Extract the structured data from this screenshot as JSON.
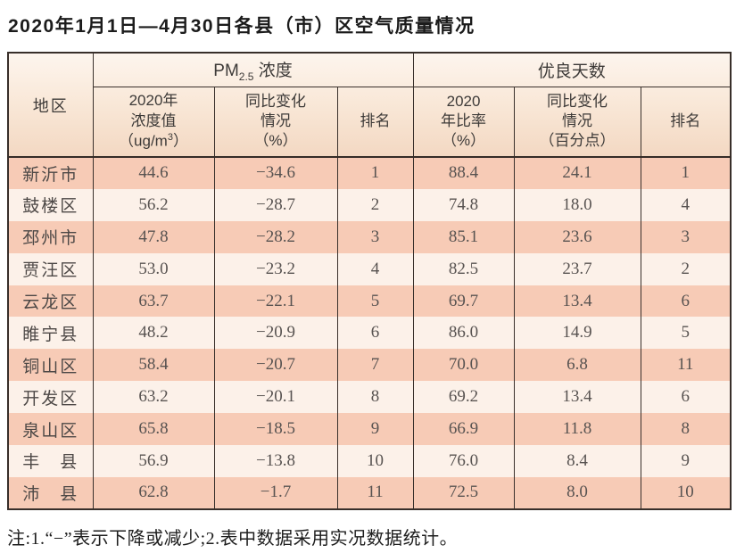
{
  "title": "2020年1月1日—4月30日各县（市）区空气质量情况",
  "table": {
    "header": {
      "region": "地区",
      "pm_group": {
        "prefix": "PM",
        "sub": "2.5",
        "suffix": " 浓度"
      },
      "good_group": "优良天数",
      "pm_value": {
        "l1": "2020年",
        "l2": "浓度值",
        "l3a": "（ug/m",
        "l3sup": "3",
        "l3b": "）"
      },
      "pm_change": {
        "l1": "同比变化",
        "l2": "情况",
        "l3": "（%）"
      },
      "rank": "排名",
      "good_rate": {
        "l1": "2020",
        "l2": "年比率",
        "l3": "（%）"
      },
      "good_change": {
        "l1": "同比变化",
        "l2": "情况",
        "l3": "（百分点）"
      }
    },
    "rows": [
      {
        "region": "新沂市",
        "pm_value": "44.6",
        "pm_change": "−34.6",
        "pm_rank": "1",
        "good_rate": "88.4",
        "good_change": "24.1",
        "good_rank": "1"
      },
      {
        "region": "鼓楼区",
        "pm_value": "56.2",
        "pm_change": "−28.7",
        "pm_rank": "2",
        "good_rate": "74.8",
        "good_change": "18.0",
        "good_rank": "4"
      },
      {
        "region": "邳州市",
        "pm_value": "47.8",
        "pm_change": "−28.2",
        "pm_rank": "3",
        "good_rate": "85.1",
        "good_change": "23.6",
        "good_rank": "3"
      },
      {
        "region": "贾汪区",
        "pm_value": "53.0",
        "pm_change": "−23.2",
        "pm_rank": "4",
        "good_rate": "82.5",
        "good_change": "23.7",
        "good_rank": "2"
      },
      {
        "region": "云龙区",
        "pm_value": "63.7",
        "pm_change": "−22.1",
        "pm_rank": "5",
        "good_rate": "69.7",
        "good_change": "13.4",
        "good_rank": "6"
      },
      {
        "region": "睢宁县",
        "pm_value": "48.2",
        "pm_change": "−20.9",
        "pm_rank": "6",
        "good_rate": "86.0",
        "good_change": "14.9",
        "good_rank": "5"
      },
      {
        "region": "铜山区",
        "pm_value": "58.4",
        "pm_change": "−20.7",
        "pm_rank": "7",
        "good_rate": "70.0",
        "good_change": "6.8",
        "good_rank": "11"
      },
      {
        "region": "开发区",
        "pm_value": "63.2",
        "pm_change": "−20.1",
        "pm_rank": "8",
        "good_rate": "69.2",
        "good_change": "13.4",
        "good_rank": "6"
      },
      {
        "region": "泉山区",
        "pm_value": "65.8",
        "pm_change": "−18.5",
        "pm_rank": "9",
        "good_rate": "66.9",
        "good_change": "11.8",
        "good_rank": "8"
      },
      {
        "region": "丰　县",
        "pm_value": "56.9",
        "pm_change": "−13.8",
        "pm_rank": "10",
        "good_rate": "76.0",
        "good_change": "8.4",
        "good_rank": "9"
      },
      {
        "region": "沛　县",
        "pm_value": "62.8",
        "pm_change": "−1.7",
        "pm_rank": "11",
        "good_rate": "72.5",
        "good_change": "8.0",
        "good_rank": "10"
      }
    ]
  },
  "note": "注:1.“−”表示下降或减少;2.表中数据采用实况数据统计。"
}
